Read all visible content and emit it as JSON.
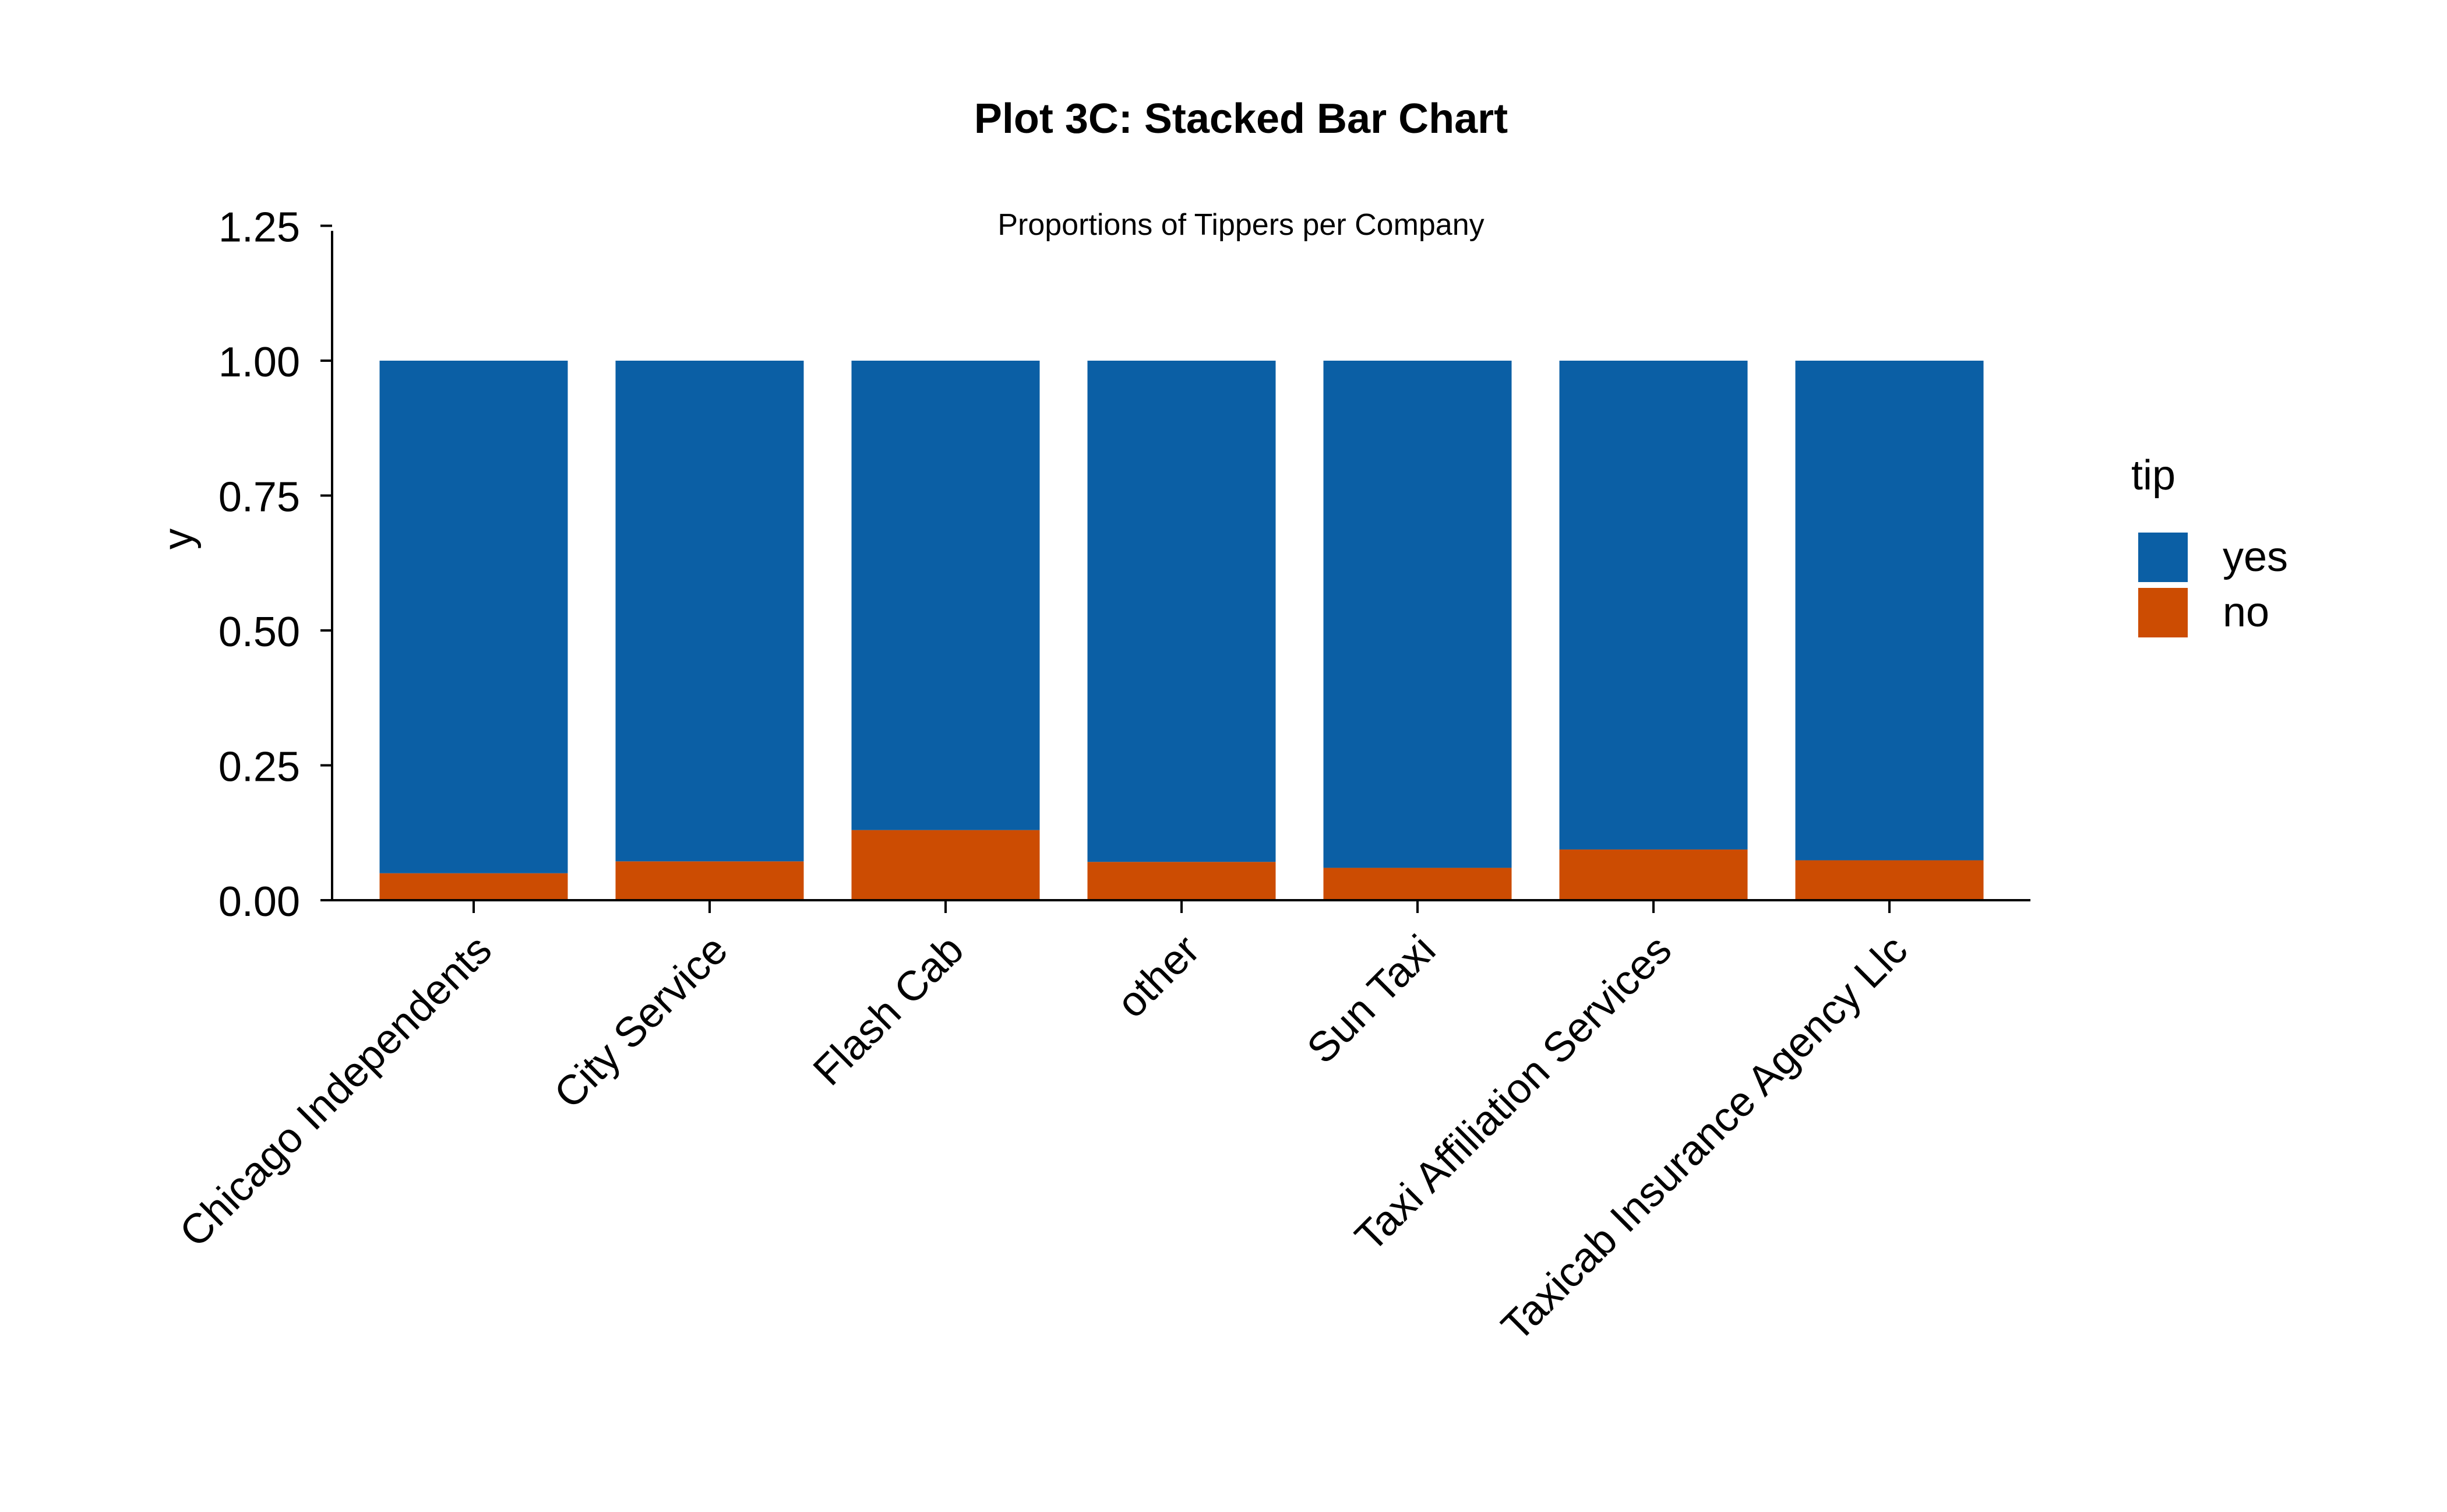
{
  "chart_data": {
    "type": "bar",
    "stacked": true,
    "title": "Plot 3C: Stacked Bar Chart",
    "subtitle": "Proportions of Tippers per Company",
    "xlabel": "",
    "ylabel": "y",
    "ylim": [
      0,
      1.3
    ],
    "yticks": [
      0.0,
      0.25,
      0.5,
      0.75,
      1.0,
      1.25
    ],
    "ytick_labels": [
      "0.00",
      "0.25",
      "0.50",
      "0.75",
      "1.00",
      "1.25"
    ],
    "grid": false,
    "legend": {
      "title": "tip",
      "placement": "right",
      "entries": [
        "yes",
        "no"
      ]
    },
    "categories": [
      "Chicago Independents",
      "City Service",
      "Flash Cab",
      "other",
      "Sun Taxi",
      "Taxi Affiliation Services",
      "Taxicab Insurance Agency Llc"
    ],
    "series": [
      {
        "name": "no",
        "color": "#cc4c02",
        "values": [
          0.05,
          0.072,
          0.13,
          0.071,
          0.06,
          0.094,
          0.074
        ]
      },
      {
        "name": "yes",
        "color": "#0b5fa5",
        "values": [
          0.95,
          0.928,
          0.87,
          0.929,
          0.94,
          0.906,
          0.926
        ]
      }
    ]
  }
}
